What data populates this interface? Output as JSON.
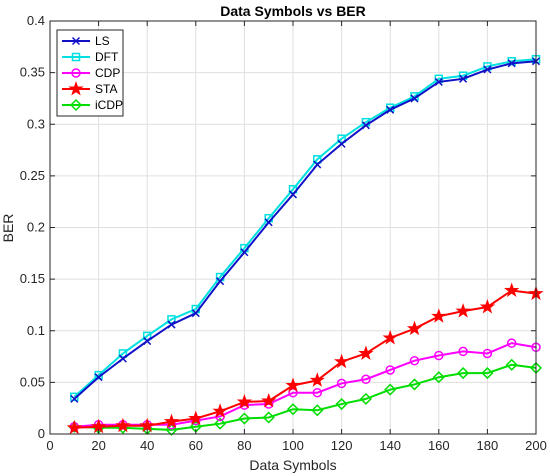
{
  "chart_data": {
    "type": "line",
    "title": "Data Symbols vs BER",
    "xlabel": "Data Symbols",
    "ylabel": "BER",
    "xlim": [
      0,
      200
    ],
    "ylim": [
      0,
      0.4
    ],
    "xticks": [
      "0",
      "20",
      "40",
      "60",
      "80",
      "100",
      "120",
      "140",
      "160",
      "180",
      "200"
    ],
    "yticks": [
      "0",
      "0.05",
      "0.1",
      "0.15",
      "0.2",
      "0.25",
      "0.3",
      "0.35",
      "0.4"
    ],
    "grid": true,
    "legend_position": "top-left",
    "x": [
      10,
      20,
      30,
      40,
      50,
      60,
      70,
      80,
      90,
      100,
      110,
      120,
      130,
      140,
      150,
      160,
      170,
      180,
      190,
      200
    ],
    "series": [
      {
        "name": "LS",
        "color": "#1010c8",
        "marker": "x-mark",
        "values": [
          0.034,
          0.055,
          0.073,
          0.09,
          0.106,
          0.117,
          0.148,
          0.176,
          0.205,
          0.232,
          0.261,
          0.281,
          0.299,
          0.314,
          0.325,
          0.341,
          0.344,
          0.353,
          0.359,
          0.361
        ]
      },
      {
        "name": "DFT",
        "color": "#00e0e0",
        "marker": "square",
        "values": [
          0.036,
          0.057,
          0.078,
          0.095,
          0.111,
          0.121,
          0.152,
          0.18,
          0.209,
          0.237,
          0.266,
          0.286,
          0.302,
          0.316,
          0.327,
          0.344,
          0.347,
          0.356,
          0.361,
          0.363
        ]
      },
      {
        "name": "CDP",
        "color": "#ff00ff",
        "marker": "circle",
        "values": [
          0.007,
          0.009,
          0.009,
          0.009,
          0.009,
          0.013,
          0.017,
          0.028,
          0.029,
          0.04,
          0.04,
          0.049,
          0.053,
          0.062,
          0.071,
          0.076,
          0.08,
          0.078,
          0.088,
          0.084
        ]
      },
      {
        "name": "STA",
        "color": "#ff0000",
        "marker": "star",
        "values": [
          0.006,
          0.007,
          0.008,
          0.008,
          0.012,
          0.015,
          0.022,
          0.031,
          0.032,
          0.047,
          0.052,
          0.07,
          0.078,
          0.093,
          0.102,
          0.114,
          0.119,
          0.123,
          0.139,
          0.136
        ]
      },
      {
        "name": "iCDP",
        "color": "#00dd00",
        "marker": "diamond",
        "values": [
          0.007,
          0.006,
          0.006,
          0.005,
          0.004,
          0.007,
          0.01,
          0.015,
          0.016,
          0.024,
          0.023,
          0.029,
          0.034,
          0.043,
          0.048,
          0.055,
          0.059,
          0.059,
          0.067,
          0.064
        ]
      }
    ]
  }
}
